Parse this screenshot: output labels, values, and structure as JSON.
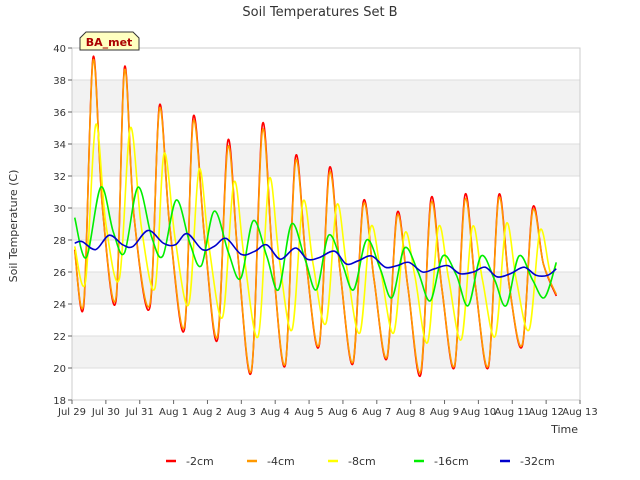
{
  "chart_data": {
    "type": "line",
    "title": "Soil Temperatures Set B",
    "xlabel": "Time",
    "ylabel": "Soil Temperature (C)",
    "station_label": "BA_met",
    "ylim": [
      18,
      40
    ],
    "yticks": [
      18,
      20,
      22,
      24,
      26,
      28,
      30,
      32,
      34,
      36,
      38,
      40
    ],
    "xlim": [
      0,
      15
    ],
    "xticks": [
      {
        "x": 0,
        "label": "Jul 29"
      },
      {
        "x": 1,
        "label": "Jul 30"
      },
      {
        "x": 2,
        "label": "Jul 31"
      },
      {
        "x": 3,
        "label": "Aug 1"
      },
      {
        "x": 4,
        "label": "Aug 2"
      },
      {
        "x": 5,
        "label": "Aug 3"
      },
      {
        "x": 6,
        "label": "Aug 4"
      },
      {
        "x": 7,
        "label": "Aug 5"
      },
      {
        "x": 8,
        "label": "Aug 6"
      },
      {
        "x": 9,
        "label": "Aug 7"
      },
      {
        "x": 10,
        "label": "Aug 8"
      },
      {
        "x": 11,
        "label": "Aug 9"
      },
      {
        "x": 12,
        "label": "Aug 10"
      },
      {
        "x": 13,
        "label": "Aug 11"
      },
      {
        "x": 14,
        "label": "Aug 12"
      },
      {
        "x": 15,
        "label": "Aug 13"
      }
    ],
    "grid": true,
    "legend_position": "bottom",
    "series": [
      {
        "name": "-2cm",
        "color": "#ff0000",
        "stroke_width": 1.6,
        "x": [
          0.08,
          0.35,
          0.62,
          0.9,
          1.3,
          1.55,
          1.83,
          2.3,
          2.58,
          2.88,
          3.32,
          3.58,
          3.92,
          4.3,
          4.6,
          4.9,
          5.3,
          5.62,
          5.92,
          6.3,
          6.6,
          6.92,
          7.3,
          7.6,
          7.92,
          8.3,
          8.6,
          8.92,
          9.3,
          9.6,
          9.92,
          10.3,
          10.6,
          10.92,
          11.3,
          11.6,
          11.92,
          12.3,
          12.6,
          12.92,
          13.3,
          13.6,
          13.92,
          14.3
        ],
        "y": [
          27.4,
          24.0,
          39.4,
          30.0,
          24.2,
          38.8,
          29.5,
          23.8,
          36.4,
          29.0,
          22.4,
          35.7,
          28.0,
          21.8,
          34.2,
          27.0,
          19.8,
          35.2,
          27.0,
          20.2,
          33.2,
          26.5,
          21.4,
          32.5,
          26.0,
          20.3,
          30.4,
          25.5,
          20.6,
          29.7,
          25.0,
          19.6,
          30.6,
          25.0,
          20.1,
          30.8,
          25.0,
          20.1,
          30.8,
          25.0,
          21.4,
          30.0,
          26.5,
          24.5
        ]
      },
      {
        "name": "-4cm",
        "color": "#ff9900",
        "stroke_width": 1.6,
        "x": [
          0.08,
          0.35,
          0.62,
          0.9,
          1.3,
          1.55,
          1.83,
          2.3,
          2.58,
          2.88,
          3.32,
          3.58,
          3.92,
          4.3,
          4.6,
          4.9,
          5.3,
          5.62,
          5.92,
          6.3,
          6.6,
          6.92,
          7.3,
          7.6,
          7.92,
          8.3,
          8.6,
          8.92,
          9.3,
          9.6,
          9.92,
          10.3,
          10.6,
          10.92,
          11.3,
          11.6,
          11.92,
          12.3,
          12.6,
          12.92,
          13.3,
          13.6,
          13.92,
          14.3
        ],
        "y": [
          27.3,
          24.2,
          39.2,
          30.0,
          24.4,
          38.6,
          29.5,
          24.0,
          36.2,
          29.0,
          22.6,
          35.4,
          28.0,
          22.0,
          33.8,
          27.0,
          19.9,
          34.8,
          27.0,
          20.3,
          32.9,
          26.5,
          21.5,
          32.2,
          26.0,
          20.4,
          30.2,
          25.5,
          20.7,
          29.5,
          25.0,
          19.8,
          30.3,
          25.0,
          20.2,
          30.5,
          25.0,
          20.2,
          30.6,
          25.0,
          21.5,
          29.8,
          26.5,
          24.6
        ]
      },
      {
        "name": "-8cm",
        "color": "#ffff00",
        "stroke_width": 1.6,
        "x": [
          0.08,
          0.4,
          0.7,
          1.0,
          1.4,
          1.72,
          2.05,
          2.45,
          2.72,
          3.05,
          3.45,
          3.75,
          4.05,
          4.45,
          4.78,
          5.08,
          5.5,
          5.82,
          6.12,
          6.5,
          6.82,
          7.12,
          7.5,
          7.82,
          8.12,
          8.5,
          8.82,
          9.12,
          9.5,
          9.82,
          10.12,
          10.5,
          10.82,
          11.12,
          11.5,
          11.82,
          12.12,
          12.5,
          12.82,
          13.12,
          13.5,
          13.82,
          14.12,
          14.3
        ],
        "y": [
          27.6,
          25.4,
          35.2,
          29.0,
          25.6,
          35.0,
          28.8,
          25.0,
          33.4,
          28.0,
          24.0,
          32.4,
          27.5,
          23.2,
          31.6,
          27.0,
          22.0,
          31.8,
          26.8,
          22.4,
          30.4,
          26.5,
          22.8,
          30.2,
          26.2,
          22.2,
          28.8,
          26.0,
          22.2,
          28.4,
          25.8,
          21.6,
          28.8,
          25.6,
          21.8,
          28.8,
          25.5,
          22.0,
          29.0,
          25.5,
          22.4,
          28.6,
          26.0,
          26.5
        ]
      },
      {
        "name": "-16cm",
        "color": "#00ee00",
        "stroke_width": 1.6,
        "x": [
          0.08,
          0.42,
          0.85,
          1.22,
          1.55,
          1.95,
          2.35,
          2.68,
          3.08,
          3.48,
          3.82,
          4.2,
          4.62,
          4.98,
          5.35,
          5.75,
          6.1,
          6.48,
          6.88,
          7.22,
          7.58,
          7.98,
          8.32,
          8.7,
          9.1,
          9.45,
          9.82,
          10.22,
          10.58,
          10.95,
          11.35,
          11.7,
          12.08,
          12.48,
          12.82,
          13.2,
          13.6,
          13.95,
          14.3
        ],
        "y": [
          29.4,
          26.9,
          31.3,
          28.5,
          27.2,
          31.3,
          28.2,
          27.0,
          30.5,
          27.8,
          26.4,
          29.8,
          27.2,
          25.6,
          29.2,
          27.0,
          24.9,
          29.0,
          26.8,
          24.9,
          28.3,
          26.5,
          24.9,
          28.0,
          26.2,
          24.4,
          27.5,
          26.0,
          24.2,
          27.0,
          25.8,
          23.9,
          27.0,
          25.5,
          23.9,
          27.0,
          25.5,
          24.4,
          26.6
        ]
      },
      {
        "name": "-32cm",
        "color": "#0000cc",
        "stroke_width": 1.6,
        "x": [
          0.08,
          0.3,
          0.7,
          1.1,
          1.5,
          1.8,
          2.25,
          2.7,
          3.05,
          3.4,
          3.85,
          4.2,
          4.55,
          5.0,
          5.4,
          5.75,
          6.15,
          6.6,
          6.95,
          7.3,
          7.75,
          8.1,
          8.45,
          8.85,
          9.25,
          9.6,
          9.95,
          10.35,
          10.7,
          11.1,
          11.45,
          11.85,
          12.2,
          12.55,
          12.95,
          13.35,
          13.7,
          14.05,
          14.3
        ],
        "y": [
          27.8,
          27.9,
          27.4,
          28.3,
          27.7,
          27.6,
          28.6,
          27.8,
          27.7,
          28.4,
          27.4,
          27.6,
          28.1,
          27.1,
          27.3,
          27.7,
          26.8,
          27.5,
          26.8,
          26.9,
          27.3,
          26.5,
          26.7,
          27.0,
          26.3,
          26.4,
          26.6,
          26.0,
          26.2,
          26.4,
          25.9,
          26.0,
          26.3,
          25.7,
          25.9,
          26.3,
          25.8,
          25.8,
          26.2
        ]
      }
    ]
  }
}
